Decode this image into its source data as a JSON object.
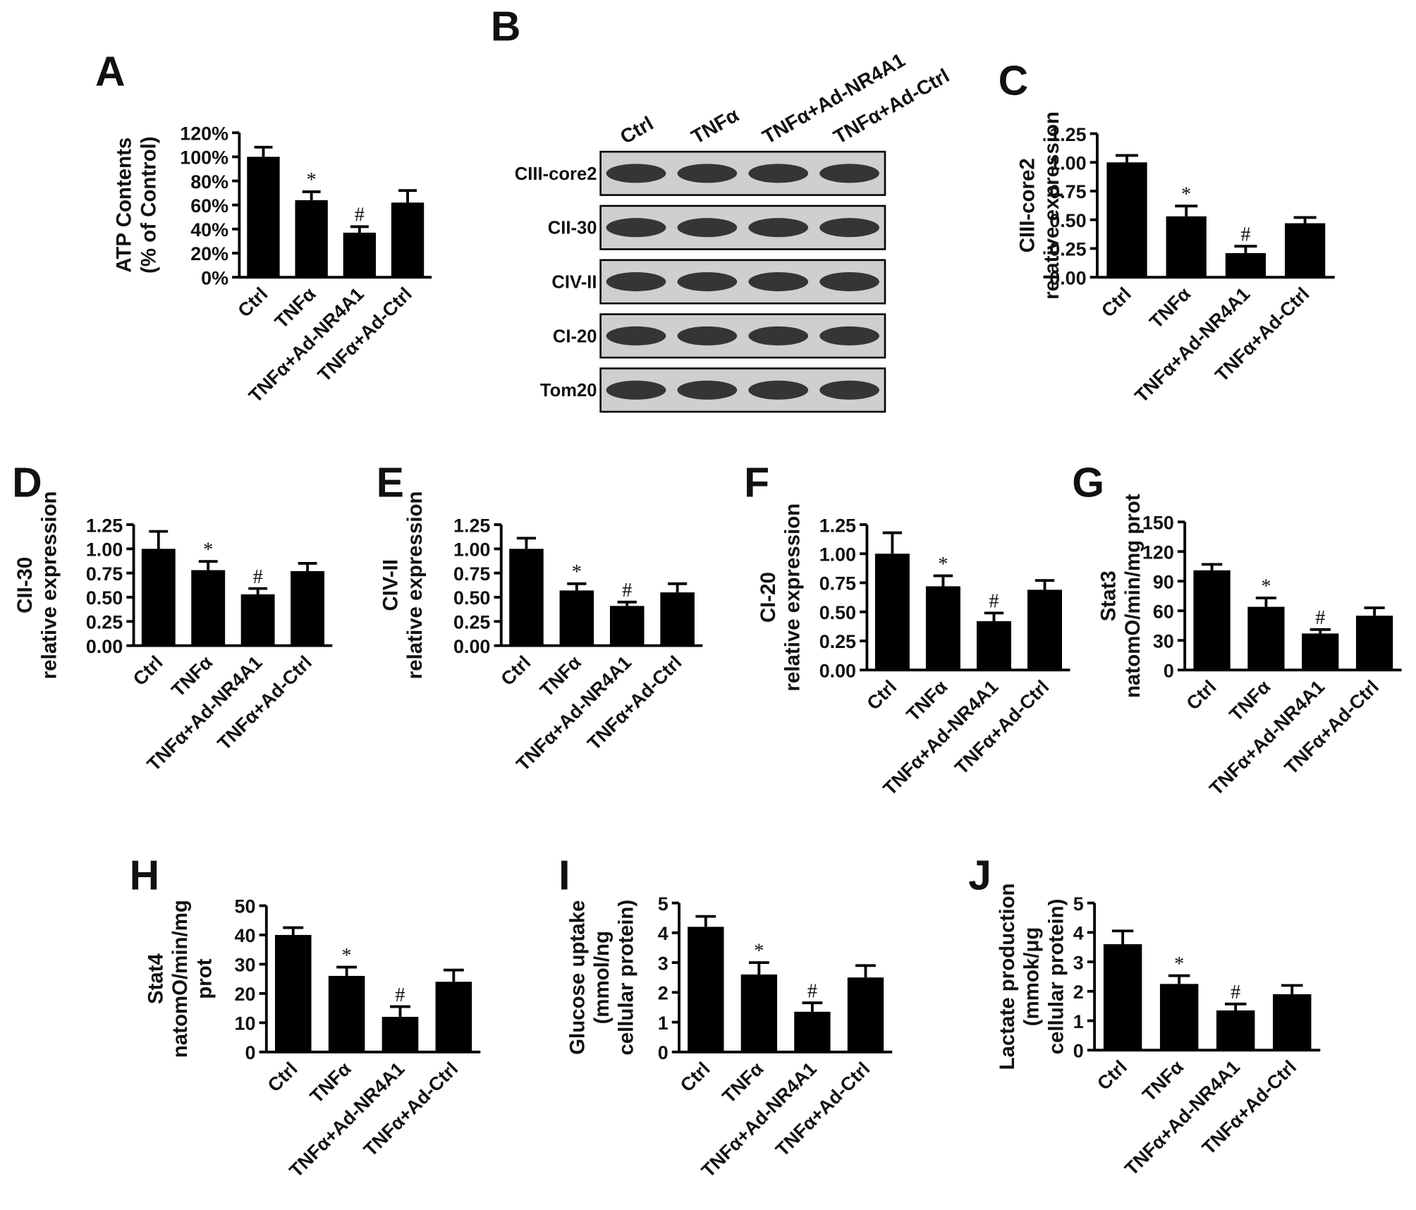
{
  "chart_data": [
    {
      "type": "bar",
      "panel": "A",
      "y_label": [
        "ATP Contents",
        "(% of Control)"
      ],
      "categories": [
        "Ctrl",
        "TNFα",
        "TNFα+Ad-NR4A1",
        "TNFα+Ad-Ctrl"
      ],
      "values": [
        100,
        64,
        37,
        62
      ],
      "errors": [
        8,
        7,
        5,
        10
      ],
      "annotations": [
        null,
        "*",
        "#",
        null
      ],
      "color": "#000000",
      "ylim": [
        0,
        120
      ],
      "yticks": [
        {
          "value": 0,
          "label": "0%"
        },
        {
          "value": 20,
          "label": "20%"
        },
        {
          "value": 40,
          "label": "40%"
        },
        {
          "value": 60,
          "label": "60%"
        },
        {
          "value": 80,
          "label": "80%"
        },
        {
          "value": 100,
          "label": "100%"
        },
        {
          "value": 120,
          "label": "120%"
        }
      ]
    },
    {
      "type": "blot",
      "panel": "B",
      "lanes": [
        "Ctrl",
        "TNFα",
        "TNFα+Ad-NR4A1",
        "TNFα+Ad-Ctrl"
      ],
      "rows": [
        "CIII-core2",
        "CII-30",
        "CIV-II",
        "CI-20",
        "Tom20"
      ]
    },
    {
      "type": "bar",
      "panel": "C",
      "y_label": [
        "CIII-core2",
        "relative expression"
      ],
      "categories": [
        "Ctrl",
        "TNFα",
        "TNFα+Ad-NR4A1",
        "TNFα+Ad-Ctrl"
      ],
      "values": [
        1.0,
        0.53,
        0.21,
        0.47
      ],
      "errors": [
        0.06,
        0.09,
        0.06,
        0.05
      ],
      "annotations": [
        null,
        "*",
        "#",
        null
      ],
      "color": "#000000",
      "ylim": [
        0,
        1.25
      ],
      "yticks": [
        {
          "value": 0,
          "label": "0.00"
        },
        0.25,
        {
          "value": 0.5,
          "label": "0.50"
        },
        0.75,
        {
          "value": 1,
          "label": "1.00"
        },
        1.25
      ]
    },
    {
      "type": "bar",
      "panel": "D",
      "y_label": [
        "CII-30",
        "relative expression"
      ],
      "categories": [
        "Ctrl",
        "TNFα",
        "TNFα+Ad-NR4A1",
        "TNFα+Ad-Ctrl"
      ],
      "values": [
        1.0,
        0.78,
        0.53,
        0.77
      ],
      "errors": [
        0.18,
        0.09,
        0.06,
        0.08
      ],
      "annotations": [
        null,
        "*",
        "#",
        null
      ],
      "color": "#000000",
      "ylim": [
        0,
        1.25
      ],
      "yticks": [
        {
          "value": 0,
          "label": "0.00"
        },
        0.25,
        {
          "value": 0.5,
          "label": "0.50"
        },
        0.75,
        {
          "value": 1,
          "label": "1.00"
        },
        1.25
      ]
    },
    {
      "type": "bar",
      "panel": "E",
      "y_label": [
        "CIV-II",
        "relative expression"
      ],
      "categories": [
        "Ctrl",
        "TNFα",
        "TNFα+Ad-NR4A1",
        "TNFα+Ad-Ctrl"
      ],
      "values": [
        1.0,
        0.57,
        0.41,
        0.55
      ],
      "errors": [
        0.11,
        0.07,
        0.04,
        0.09
      ],
      "annotations": [
        null,
        "*",
        "#",
        null
      ],
      "color": "#000000",
      "ylim": [
        0,
        1.25
      ],
      "yticks": [
        {
          "value": 0,
          "label": "0.00"
        },
        0.25,
        {
          "value": 0.5,
          "label": "0.50"
        },
        0.75,
        {
          "value": 1,
          "label": "1.00"
        },
        1.25
      ]
    },
    {
      "type": "bar",
      "panel": "F",
      "y_label": [
        "CI-20",
        "relative expression"
      ],
      "categories": [
        "Ctrl",
        "TNFα",
        "TNFα+Ad-NR4A1",
        "TNFα+Ad-Ctrl"
      ],
      "values": [
        1.0,
        0.72,
        0.42,
        0.69
      ],
      "errors": [
        0.18,
        0.09,
        0.07,
        0.08
      ],
      "annotations": [
        null,
        "*",
        "#",
        null
      ],
      "color": "#000000",
      "ylim": [
        0,
        1.25
      ],
      "yticks": [
        {
          "value": 0,
          "label": "0.00"
        },
        0.25,
        {
          "value": 0.5,
          "label": "0.50"
        },
        0.75,
        {
          "value": 1,
          "label": "1.00"
        },
        1.25
      ]
    },
    {
      "type": "bar",
      "panel": "G",
      "y_label": [
        "Stat3",
        "natomO/min/mg prot"
      ],
      "categories": [
        "Ctrl",
        "TNFα",
        "TNFα+Ad-NR4A1",
        "TNFα+Ad-Ctrl"
      ],
      "values": [
        101,
        64,
        37,
        55
      ],
      "errors": [
        6,
        9,
        4,
        8
      ],
      "annotations": [
        null,
        "*",
        "#",
        null
      ],
      "color": "#000000",
      "ylim": [
        0,
        150
      ],
      "yticks": [
        0,
        30,
        60,
        90,
        120,
        150
      ]
    },
    {
      "type": "bar",
      "panel": "H",
      "y_label": [
        "Stat4",
        "natomO/min/mg",
        "prot"
      ],
      "categories": [
        "Ctrl",
        "TNFα",
        "TNFα+Ad-NR4A1",
        "TNFα+Ad-Ctrl"
      ],
      "values": [
        40,
        26,
        12,
        24
      ],
      "errors": [
        2.5,
        3,
        3.5,
        4
      ],
      "annotations": [
        null,
        "*",
        "#",
        null
      ],
      "color": "#000000",
      "ylim": [
        0,
        50
      ],
      "yticks": [
        0,
        10,
        20,
        30,
        40,
        50
      ]
    },
    {
      "type": "bar",
      "panel": "I",
      "y_label": [
        "Glucose uptake",
        "(mmol/ng",
        "cellular protein)"
      ],
      "categories": [
        "Ctrl",
        "TNFα",
        "TNFα+Ad-NR4A1",
        "TNFα+Ad-Ctrl"
      ],
      "values": [
        4.2,
        2.6,
        1.35,
        2.5
      ],
      "errors": [
        0.35,
        0.4,
        0.3,
        0.4
      ],
      "annotations": [
        null,
        "*",
        "#",
        null
      ],
      "color": "#000000",
      "ylim": [
        0,
        5
      ],
      "yticks": [
        0,
        1,
        2,
        3,
        4,
        5
      ]
    },
    {
      "type": "bar",
      "panel": "J",
      "y_label": [
        "Lactate production",
        "(mmok/μg",
        "cellular protein)"
      ],
      "categories": [
        "Ctrl",
        "TNFα",
        "TNFα+Ad-NR4A1",
        "TNFα+Ad-Ctrl"
      ],
      "values": [
        3.6,
        2.25,
        1.35,
        1.9
      ],
      "errors": [
        0.45,
        0.28,
        0.22,
        0.3
      ],
      "annotations": [
        null,
        "*",
        "#",
        null
      ],
      "color": "#000000",
      "ylim": [
        0,
        5
      ],
      "yticks": [
        0,
        1,
        2,
        3,
        4,
        5
      ]
    }
  ]
}
